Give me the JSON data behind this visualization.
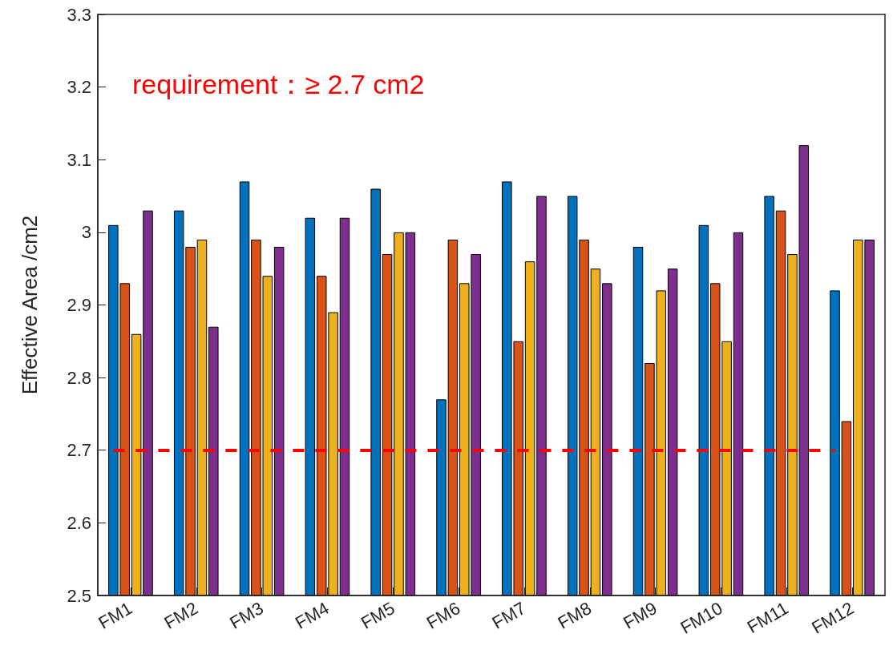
{
  "chart_data": {
    "type": "bar",
    "ylabel": "Effective Area /cm2",
    "categories": [
      "FM1",
      "FM2",
      "FM3",
      "FM4",
      "FM5",
      "FM6",
      "FM7",
      "FM8",
      "FM9",
      "FM10",
      "FM11",
      "FM12"
    ],
    "series": [
      {
        "color": "#0072bd",
        "values": [
          3.01,
          3.03,
          3.07,
          3.02,
          3.06,
          2.77,
          3.07,
          3.05,
          2.98,
          3.01,
          3.05,
          2.92
        ]
      },
      {
        "color": "#d95319",
        "values": [
          2.93,
          2.98,
          2.99,
          2.94,
          2.97,
          2.99,
          2.85,
          2.99,
          2.82,
          2.93,
          3.03,
          2.74
        ]
      },
      {
        "color": "#edb120",
        "values": [
          2.86,
          2.99,
          2.94,
          2.89,
          3.0,
          2.93,
          2.96,
          2.95,
          2.92,
          2.85,
          2.97,
          2.99
        ]
      },
      {
        "color": "#7e2f8e",
        "values": [
          3.03,
          2.87,
          2.98,
          3.02,
          3.0,
          2.97,
          3.05,
          2.93,
          2.95,
          3.0,
          3.12,
          2.99
        ]
      }
    ],
    "ylim": [
      2.5,
      3.3
    ],
    "yticks": [
      2.5,
      2.6,
      2.7,
      2.8,
      2.9,
      3,
      3.1,
      3.2,
      3.3
    ],
    "ref_lines": [
      {
        "axis": "y",
        "value": 2.7,
        "color": "#ff0000",
        "line_style": "dashed"
      }
    ],
    "annotations": [
      "requirement：≥ 2.7 cm2"
    ],
    "grid": false
  }
}
